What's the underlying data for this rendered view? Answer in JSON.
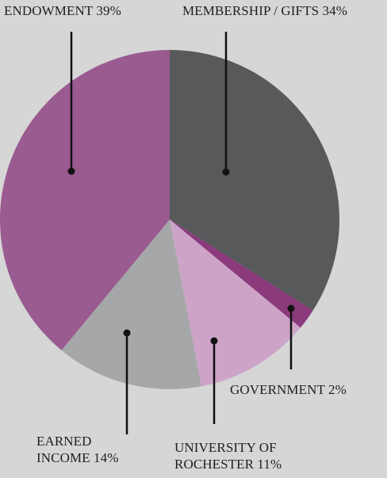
{
  "chart_data": {
    "type": "pie",
    "title": "",
    "start_angle": "12 o'clock",
    "direction": "clockwise",
    "slices": [
      {
        "name": "MEMBERSHIP / GIFTS",
        "value": 34,
        "color": "#58595b",
        "label_lines": [
          "MEMBERSHIP / GIFTS 34%"
        ]
      },
      {
        "name": "GOVERNMENT",
        "value": 2,
        "color": "#8b3a7c",
        "label_lines": [
          "GOVERNMENT 2%"
        ]
      },
      {
        "name": "UNIVERSITY OF ROCHESTER",
        "value": 11,
        "color": "#cda4c8",
        "label_lines": [
          "UNIVERSITY  OF",
          "ROCHESTER 11%"
        ]
      },
      {
        "name": "EARNED INCOME",
        "value": 14,
        "color": "#a6a7a9",
        "label_lines": [
          "EARNED",
          "INCOME 14%"
        ]
      },
      {
        "name": "ENDOWMENT",
        "value": 39,
        "color": "#9a5b90",
        "label_lines": [
          "ENDOWMENT 39%"
        ]
      }
    ]
  },
  "colors": {
    "background": "#d6d6d7",
    "text": "#1f1f1f",
    "leader": "#111111"
  }
}
